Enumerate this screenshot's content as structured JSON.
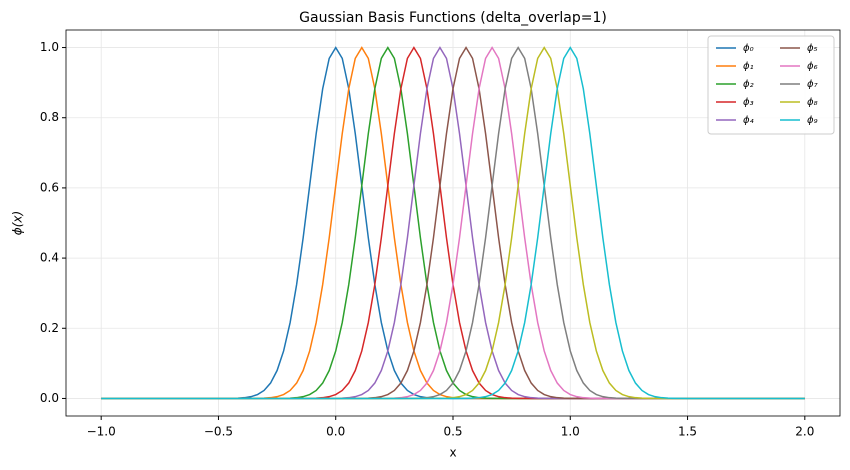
{
  "chart_data": {
    "type": "line",
    "title": "Gaussian Basis Functions (delta_overlap=1)",
    "x_label": "x",
    "y_label": "ϕ(x)",
    "xlim": [
      -1.15,
      2.15
    ],
    "ylim": [
      -0.05,
      1.05
    ],
    "xticks": [
      {
        "value": -1,
        "label": "−1.0"
      },
      {
        "value": -0.5,
        "label": "−0.5"
      },
      {
        "value": 0,
        "label": "0.0"
      },
      {
        "value": 0.5,
        "label": "0.5"
      },
      {
        "value": 1,
        "label": "1.0"
      },
      {
        "value": 1.5,
        "label": "1.5"
      },
      {
        "value": 2,
        "label": "2.0"
      }
    ],
    "yticks": [
      {
        "value": 0,
        "label": "0.0"
      },
      {
        "value": 0.2,
        "label": "0.2"
      },
      {
        "value": 0.4,
        "label": "0.4"
      },
      {
        "value": 0.6,
        "label": "0.6"
      },
      {
        "value": 0.8,
        "label": "0.8"
      },
      {
        "value": 1,
        "label": "1.0"
      }
    ],
    "grid": true,
    "legend": "upper right",
    "x": [
      -1,
      -0.5,
      -0.4722,
      -0.4444,
      -0.4167,
      -0.3889,
      -0.3611,
      -0.3333,
      -0.3056,
      -0.2778,
      -0.25,
      -0.2222,
      -0.1944,
      -0.1667,
      -0.1389,
      -0.1111,
      -0.0833,
      -0.0556,
      -0.0278,
      0,
      0.0278,
      0.0556,
      0.0833,
      0.1111,
      0.1389,
      0.1667,
      0.1944,
      0.2222,
      0.25,
      0.2778,
      0.3056,
      0.3333,
      0.3611,
      0.3889,
      0.4167,
      0.4444,
      0.4722,
      0.5,
      0.5278,
      0.5556,
      0.5833,
      0.6111,
      0.6389,
      0.6667,
      0.6944,
      0.7222,
      0.75,
      0.7778,
      0.8056,
      0.8333,
      0.8611,
      0.8889,
      0.9167,
      0.9444,
      0.9722,
      1,
      1.0278,
      1.0556,
      1.0833,
      1.1111,
      1.1389,
      1.1667,
      1.1944,
      1.2222,
      1.25,
      1.2778,
      1.3056,
      1.3333,
      1.3611,
      1.3889,
      1.4167,
      1.4444,
      1.4722,
      1.5,
      2
    ],
    "series": [
      {
        "name": "ϕ₀",
        "color": "#1f77b4",
        "values": [
          0,
          0,
          0.0001,
          0.0003,
          0.0009,
          0.0022,
          0.0051,
          0.0111,
          0.0228,
          0.0439,
          0.0796,
          0.1353,
          0.2163,
          0.3247,
          0.4578,
          0.6065,
          0.7548,
          0.8825,
          0.9692,
          1,
          0.9692,
          0.8825,
          0.7548,
          0.6065,
          0.4578,
          0.3247,
          0.2163,
          0.1353,
          0.0796,
          0.0439,
          0.0228,
          0.0111,
          0.0051,
          0.0022,
          0.0009,
          0.0003,
          0.0001,
          0,
          0,
          0,
          0,
          0,
          0,
          0,
          0,
          0,
          0,
          0,
          0,
          0,
          0,
          0,
          0,
          0,
          0,
          0,
          0,
          0,
          0,
          0,
          0,
          0,
          0,
          0,
          0,
          0,
          0,
          0,
          0,
          0,
          0,
          0,
          0,
          0,
          0
        ]
      },
      {
        "name": "ϕ₁",
        "color": "#ff7f0e",
        "values": [
          0,
          0,
          0,
          0,
          0,
          0,
          0.0001,
          0.0003,
          0.0009,
          0.0022,
          0.0051,
          0.0111,
          0.0228,
          0.0439,
          0.0796,
          0.1353,
          0.2163,
          0.3247,
          0.4578,
          0.6065,
          0.7548,
          0.8825,
          0.9692,
          1,
          0.9692,
          0.8825,
          0.7548,
          0.6065,
          0.4578,
          0.3247,
          0.2163,
          0.1353,
          0.0796,
          0.0439,
          0.0228,
          0.0111,
          0.0051,
          0.0022,
          0.0009,
          0.0003,
          0.0001,
          0,
          0,
          0,
          0,
          0,
          0,
          0,
          0,
          0,
          0,
          0,
          0,
          0,
          0,
          0,
          0,
          0,
          0,
          0,
          0,
          0,
          0,
          0,
          0,
          0,
          0,
          0,
          0,
          0,
          0,
          0,
          0,
          0,
          0
        ]
      },
      {
        "name": "ϕ₂",
        "color": "#2ca02c",
        "values": [
          0,
          0,
          0,
          0,
          0,
          0,
          0,
          0,
          0,
          0,
          0.0001,
          0.0003,
          0.0009,
          0.0022,
          0.0051,
          0.0111,
          0.0228,
          0.0439,
          0.0796,
          0.1353,
          0.2163,
          0.3247,
          0.4578,
          0.6065,
          0.7548,
          0.8825,
          0.9692,
          1,
          0.9692,
          0.8825,
          0.7548,
          0.6065,
          0.4578,
          0.3247,
          0.2163,
          0.1353,
          0.0796,
          0.0439,
          0.0228,
          0.0111,
          0.0051,
          0.0022,
          0.0009,
          0.0003,
          0.0001,
          0,
          0,
          0,
          0,
          0,
          0,
          0,
          0,
          0,
          0,
          0,
          0,
          0,
          0,
          0,
          0,
          0,
          0,
          0,
          0,
          0,
          0,
          0,
          0,
          0,
          0,
          0,
          0,
          0,
          0
        ]
      },
      {
        "name": "ϕ₃",
        "color": "#d62728",
        "values": [
          0,
          0,
          0,
          0,
          0,
          0,
          0,
          0,
          0,
          0,
          0,
          0,
          0,
          0,
          0.0001,
          0.0003,
          0.0009,
          0.0022,
          0.0051,
          0.0111,
          0.0228,
          0.0439,
          0.0796,
          0.1353,
          0.2163,
          0.3247,
          0.4578,
          0.6065,
          0.7548,
          0.8825,
          0.9692,
          1,
          0.9692,
          0.8825,
          0.7548,
          0.6065,
          0.4578,
          0.3247,
          0.2163,
          0.1353,
          0.0796,
          0.0439,
          0.0228,
          0.0111,
          0.0051,
          0.0022,
          0.0009,
          0.0003,
          0.0001,
          0,
          0,
          0,
          0,
          0,
          0,
          0,
          0,
          0,
          0,
          0,
          0,
          0,
          0,
          0,
          0,
          0,
          0,
          0,
          0,
          0,
          0,
          0,
          0,
          0,
          0
        ]
      },
      {
        "name": "ϕ₄",
        "color": "#9467bd",
        "values": [
          0,
          0,
          0,
          0,
          0,
          0,
          0,
          0,
          0,
          0,
          0,
          0,
          0,
          0,
          0,
          0,
          0,
          0,
          0.0001,
          0.0003,
          0.0009,
          0.0022,
          0.0051,
          0.0111,
          0.0228,
          0.0439,
          0.0796,
          0.1353,
          0.2163,
          0.3247,
          0.4578,
          0.6065,
          0.7548,
          0.8825,
          0.9692,
          1,
          0.9692,
          0.8825,
          0.7548,
          0.6065,
          0.4578,
          0.3247,
          0.2163,
          0.1353,
          0.0796,
          0.0439,
          0.0228,
          0.0111,
          0.0051,
          0.0022,
          0.0009,
          0.0003,
          0.0001,
          0,
          0,
          0,
          0,
          0,
          0,
          0,
          0,
          0,
          0,
          0,
          0,
          0,
          0,
          0,
          0,
          0,
          0,
          0,
          0,
          0,
          0
        ]
      },
      {
        "name": "ϕ₅",
        "color": "#8c564b",
        "values": [
          0,
          0,
          0,
          0,
          0,
          0,
          0,
          0,
          0,
          0,
          0,
          0,
          0,
          0,
          0,
          0,
          0,
          0,
          0,
          0,
          0,
          0,
          0.0001,
          0.0003,
          0.0009,
          0.0022,
          0.0051,
          0.0111,
          0.0228,
          0.0439,
          0.0796,
          0.1353,
          0.2163,
          0.3247,
          0.4578,
          0.6065,
          0.7548,
          0.8825,
          0.9692,
          1,
          0.9692,
          0.8825,
          0.7548,
          0.6065,
          0.4578,
          0.3247,
          0.2163,
          0.1353,
          0.0796,
          0.0439,
          0.0228,
          0.0111,
          0.0051,
          0.0022,
          0.0009,
          0.0003,
          0.0001,
          0,
          0,
          0,
          0,
          0,
          0,
          0,
          0,
          0,
          0,
          0,
          0,
          0,
          0,
          0,
          0,
          0,
          0
        ]
      },
      {
        "name": "ϕ₆",
        "color": "#e377c2",
        "values": [
          0,
          0,
          0,
          0,
          0,
          0,
          0,
          0,
          0,
          0,
          0,
          0,
          0,
          0,
          0,
          0,
          0,
          0,
          0,
          0,
          0,
          0,
          0,
          0,
          0,
          0,
          0.0001,
          0.0003,
          0.0009,
          0.0022,
          0.0051,
          0.0111,
          0.0228,
          0.0439,
          0.0796,
          0.1353,
          0.2163,
          0.3247,
          0.4578,
          0.6065,
          0.7548,
          0.8825,
          0.9692,
          1,
          0.9692,
          0.8825,
          0.7548,
          0.6065,
          0.4578,
          0.3247,
          0.2163,
          0.1353,
          0.0796,
          0.0439,
          0.0228,
          0.0111,
          0.0051,
          0.0022,
          0.0009,
          0.0003,
          0.0001,
          0,
          0,
          0,
          0,
          0,
          0,
          0,
          0,
          0,
          0,
          0,
          0,
          0,
          0
        ]
      },
      {
        "name": "ϕ₇",
        "color": "#7f7f7f",
        "values": [
          0,
          0,
          0,
          0,
          0,
          0,
          0,
          0,
          0,
          0,
          0,
          0,
          0,
          0,
          0,
          0,
          0,
          0,
          0,
          0,
          0,
          0,
          0,
          0,
          0,
          0,
          0,
          0,
          0,
          0,
          0.0001,
          0.0003,
          0.0009,
          0.0022,
          0.0051,
          0.0111,
          0.0228,
          0.0439,
          0.0796,
          0.1353,
          0.2163,
          0.3247,
          0.4578,
          0.6065,
          0.7548,
          0.8825,
          0.9692,
          1,
          0.9692,
          0.8825,
          0.7548,
          0.6065,
          0.4578,
          0.3247,
          0.2163,
          0.1353,
          0.0796,
          0.0439,
          0.0228,
          0.0111,
          0.0051,
          0.0022,
          0.0009,
          0.0003,
          0.0001,
          0,
          0,
          0,
          0,
          0,
          0,
          0,
          0,
          0,
          0
        ]
      },
      {
        "name": "ϕ₈",
        "color": "#bcbd22",
        "values": [
          0,
          0,
          0,
          0,
          0,
          0,
          0,
          0,
          0,
          0,
          0,
          0,
          0,
          0,
          0,
          0,
          0,
          0,
          0,
          0,
          0,
          0,
          0,
          0,
          0,
          0,
          0,
          0,
          0,
          0,
          0,
          0,
          0,
          0,
          0.0001,
          0.0003,
          0.0009,
          0.0022,
          0.0051,
          0.0111,
          0.0228,
          0.0439,
          0.0796,
          0.1353,
          0.2163,
          0.3247,
          0.4578,
          0.6065,
          0.7548,
          0.8825,
          0.9692,
          1,
          0.9692,
          0.8825,
          0.7548,
          0.6065,
          0.4578,
          0.3247,
          0.2163,
          0.1353,
          0.0796,
          0.0439,
          0.0228,
          0.0111,
          0.0051,
          0.0022,
          0.0009,
          0.0003,
          0.0001,
          0,
          0,
          0,
          0,
          0,
          0
        ]
      },
      {
        "name": "ϕ₉",
        "color": "#17becf",
        "values": [
          0,
          0,
          0,
          0,
          0,
          0,
          0,
          0,
          0,
          0,
          0,
          0,
          0,
          0,
          0,
          0,
          0,
          0,
          0,
          0,
          0,
          0,
          0,
          0,
          0,
          0,
          0,
          0,
          0,
          0,
          0,
          0,
          0,
          0,
          0,
          0,
          0,
          0,
          0.0001,
          0.0003,
          0.0009,
          0.0022,
          0.0051,
          0.0111,
          0.0228,
          0.0439,
          0.0796,
          0.1353,
          0.2163,
          0.3247,
          0.4578,
          0.6065,
          0.7548,
          0.8825,
          0.9692,
          1,
          0.9692,
          0.8825,
          0.7548,
          0.6065,
          0.4578,
          0.3247,
          0.2163,
          0.1353,
          0.0796,
          0.0439,
          0.0228,
          0.0111,
          0.0051,
          0.0022,
          0.0009,
          0.0003,
          0.0001,
          0,
          0
        ]
      }
    ]
  }
}
